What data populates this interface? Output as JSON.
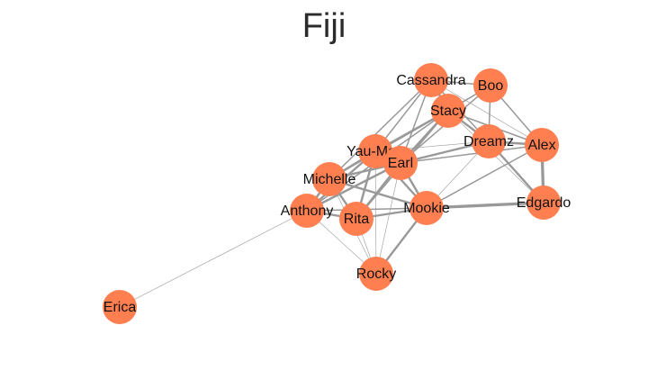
{
  "title": "Fiji",
  "colors": {
    "node": "#ff7f50",
    "edge": "#999999",
    "background": "#ffffff",
    "label": "#111111"
  },
  "nodes": [
    {
      "id": "Cassandra",
      "label": "Cassandra"
    },
    {
      "id": "Boo",
      "label": "Boo"
    },
    {
      "id": "Stacy",
      "label": "Stacy"
    },
    {
      "id": "Dreamz",
      "label": "Dreamz"
    },
    {
      "id": "Alex",
      "label": "Alex"
    },
    {
      "id": "Yau-Man",
      "label": "Yau-Man"
    },
    {
      "id": "Earl",
      "label": "Earl"
    },
    {
      "id": "Michelle",
      "label": "Michelle"
    },
    {
      "id": "Anthony",
      "label": "Anthony"
    },
    {
      "id": "Rita",
      "label": "Rita"
    },
    {
      "id": "Mookie",
      "label": "Mookie"
    },
    {
      "id": "Edgardo",
      "label": "Edgardo"
    },
    {
      "id": "Rocky",
      "label": "Rocky"
    },
    {
      "id": "Erica",
      "label": "Erica"
    }
  ],
  "edges": [
    {
      "source": "Cassandra",
      "target": "Boo",
      "weight": 2
    },
    {
      "source": "Cassandra",
      "target": "Stacy",
      "weight": 3
    },
    {
      "source": "Cassandra",
      "target": "Dreamz",
      "weight": 2
    },
    {
      "source": "Cassandra",
      "target": "Alex",
      "weight": 1
    },
    {
      "source": "Cassandra",
      "target": "Yau-Man",
      "weight": 2
    },
    {
      "source": "Cassandra",
      "target": "Earl",
      "weight": 2
    },
    {
      "source": "Cassandra",
      "target": "Michelle",
      "weight": 2
    },
    {
      "source": "Boo",
      "target": "Stacy",
      "weight": 2
    },
    {
      "source": "Boo",
      "target": "Dreamz",
      "weight": 2
    },
    {
      "source": "Boo",
      "target": "Alex",
      "weight": 2
    },
    {
      "source": "Boo",
      "target": "Earl",
      "weight": 2
    },
    {
      "source": "Boo",
      "target": "Yau-Man",
      "weight": 1
    },
    {
      "source": "Stacy",
      "target": "Dreamz",
      "weight": 3
    },
    {
      "source": "Stacy",
      "target": "Alex",
      "weight": 2
    },
    {
      "source": "Stacy",
      "target": "Yau-Man",
      "weight": 3
    },
    {
      "source": "Stacy",
      "target": "Earl",
      "weight": 3
    },
    {
      "source": "Stacy",
      "target": "Michelle",
      "weight": 2
    },
    {
      "source": "Stacy",
      "target": "Rita",
      "weight": 2
    },
    {
      "source": "Stacy",
      "target": "Anthony",
      "weight": 2
    },
    {
      "source": "Stacy",
      "target": "Edgardo",
      "weight": 1
    },
    {
      "source": "Dreamz",
      "target": "Alex",
      "weight": 3
    },
    {
      "source": "Dreamz",
      "target": "Edgardo",
      "weight": 3
    },
    {
      "source": "Dreamz",
      "target": "Yau-Man",
      "weight": 1
    },
    {
      "source": "Dreamz",
      "target": "Earl",
      "weight": 3
    },
    {
      "source": "Dreamz",
      "target": "Mookie",
      "weight": 1
    },
    {
      "source": "Alex",
      "target": "Edgardo",
      "weight": 4
    },
    {
      "source": "Alex",
      "target": "Earl",
      "weight": 2
    },
    {
      "source": "Alex",
      "target": "Mookie",
      "weight": 2
    },
    {
      "source": "Yau-Man",
      "target": "Earl",
      "weight": 4
    },
    {
      "source": "Yau-Man",
      "target": "Michelle",
      "weight": 3
    },
    {
      "source": "Yau-Man",
      "target": "Anthony",
      "weight": 3
    },
    {
      "source": "Yau-Man",
      "target": "Rita",
      "weight": 3
    },
    {
      "source": "Yau-Man",
      "target": "Mookie",
      "weight": 3
    },
    {
      "source": "Yau-Man",
      "target": "Rocky",
      "weight": 1
    },
    {
      "source": "Earl",
      "target": "Michelle",
      "weight": 3
    },
    {
      "source": "Earl",
      "target": "Anthony",
      "weight": 3
    },
    {
      "source": "Earl",
      "target": "Rita",
      "weight": 3
    },
    {
      "source": "Earl",
      "target": "Mookie",
      "weight": 3
    },
    {
      "source": "Earl",
      "target": "Rocky",
      "weight": 1
    },
    {
      "source": "Michelle",
      "target": "Anthony",
      "weight": 3
    },
    {
      "source": "Michelle",
      "target": "Rita",
      "weight": 3
    },
    {
      "source": "Michelle",
      "target": "Mookie",
      "weight": 3
    },
    {
      "source": "Michelle",
      "target": "Rocky",
      "weight": 1
    },
    {
      "source": "Anthony",
      "target": "Rita",
      "weight": 3
    },
    {
      "source": "Anthony",
      "target": "Mookie",
      "weight": 2
    },
    {
      "source": "Anthony",
      "target": "Rocky",
      "weight": 1
    },
    {
      "source": "Anthony",
      "target": "Erica",
      "weight": 1
    },
    {
      "source": "Rita",
      "target": "Mookie",
      "weight": 3
    },
    {
      "source": "Rita",
      "target": "Rocky",
      "weight": 1
    },
    {
      "source": "Mookie",
      "target": "Edgardo",
      "weight": 4
    },
    {
      "source": "Mookie",
      "target": "Rocky",
      "weight": 3
    }
  ]
}
